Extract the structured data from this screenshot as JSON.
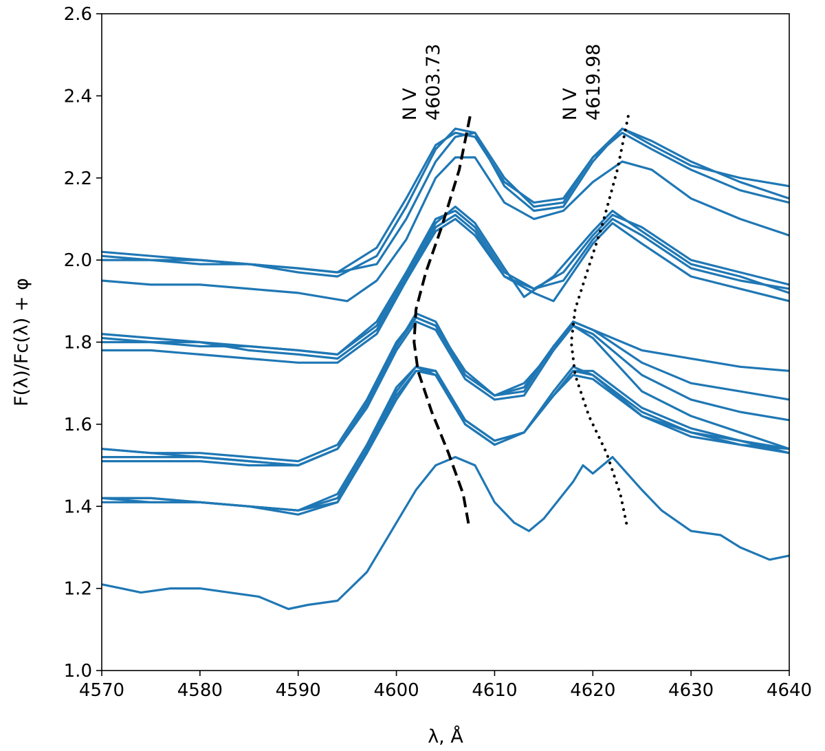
{
  "chart_data": {
    "type": "line",
    "xlabel": "λ, Å",
    "ylabel": "F(λ)/Fc(λ) + φ",
    "xlim": [
      4570,
      4640
    ],
    "ylim": [
      1.0,
      2.6
    ],
    "x_ticks": [
      "4570",
      "4580",
      "4590",
      "4600",
      "4610",
      "4620",
      "4630",
      "4640"
    ],
    "y_ticks": [
      "1.0",
      "1.2",
      "1.4",
      "1.6",
      "1.8",
      "2.0",
      "2.2",
      "2.4",
      "2.6"
    ],
    "grid": false,
    "series_color": "#1f77b4",
    "annotations": [
      {
        "line1": "N V",
        "line2": "4603.73",
        "x": 4602.0,
        "y": 2.34
      },
      {
        "line1": "N V",
        "line2": "4619.98",
        "x": 4618.3,
        "y": 2.34
      }
    ],
    "series": [
      {
        "group": 1,
        "x": [
          4570,
          4575,
          4580,
          4585,
          4590,
          4594,
          4598,
          4601,
          4604,
          4606,
          4608,
          4611,
          4614,
          4617,
          4620,
          4623,
          4626,
          4630,
          4635,
          4640
        ],
        "y": [
          2.02,
          2.01,
          2.0,
          1.99,
          1.98,
          1.97,
          2.03,
          2.15,
          2.28,
          2.31,
          2.3,
          2.19,
          2.14,
          2.15,
          2.25,
          2.32,
          2.28,
          2.23,
          2.2,
          2.18
        ]
      },
      {
        "group": 1,
        "x": [
          4570,
          4575,
          4580,
          4585,
          4590,
          4594,
          4598,
          4601,
          4604,
          4606,
          4608,
          4611,
          4614,
          4617,
          4620,
          4623,
          4626,
          4630,
          4635,
          4640
        ],
        "y": [
          2.01,
          2.0,
          2.0,
          1.99,
          1.97,
          1.96,
          2.01,
          2.13,
          2.27,
          2.32,
          2.31,
          2.18,
          2.12,
          2.13,
          2.24,
          2.32,
          2.29,
          2.24,
          2.19,
          2.15
        ]
      },
      {
        "group": 1,
        "x": [
          4570,
          4575,
          4580,
          4585,
          4590,
          4594,
          4598,
          4601,
          4604,
          4606,
          4608,
          4611,
          4614,
          4617,
          4620,
          4623,
          4626,
          4630,
          4635,
          4640
        ],
        "y": [
          2.0,
          2.0,
          1.99,
          1.99,
          1.98,
          1.97,
          1.99,
          2.1,
          2.24,
          2.3,
          2.31,
          2.2,
          2.13,
          2.14,
          2.25,
          2.31,
          2.27,
          2.22,
          2.17,
          2.14
        ]
      },
      {
        "group": 1,
        "x": [
          4570,
          4575,
          4580,
          4585,
          4590,
          4595,
          4598,
          4601,
          4604,
          4606,
          4608,
          4611,
          4614,
          4617,
          4620,
          4623,
          4626,
          4630,
          4635,
          4640
        ],
        "y": [
          1.95,
          1.94,
          1.94,
          1.93,
          1.92,
          1.9,
          1.95,
          2.05,
          2.2,
          2.25,
          2.25,
          2.14,
          2.1,
          2.12,
          2.19,
          2.24,
          2.22,
          2.15,
          2.1,
          2.06
        ]
      },
      {
        "group": 2,
        "x": [
          4570,
          4575,
          4580,
          4585,
          4590,
          4594,
          4598,
          4601,
          4604,
          4606,
          4608,
          4611,
          4614,
          4617,
          4620,
          4622,
          4625,
          4630,
          4635,
          4640
        ],
        "y": [
          1.82,
          1.81,
          1.8,
          1.79,
          1.78,
          1.77,
          1.85,
          1.97,
          2.1,
          2.12,
          2.08,
          1.97,
          1.93,
          1.97,
          2.06,
          2.11,
          2.08,
          2.0,
          1.97,
          1.94
        ]
      },
      {
        "group": 2,
        "x": [
          4570,
          4575,
          4580,
          4585,
          4590,
          4594,
          4598,
          4601,
          4604,
          4606,
          4608,
          4611,
          4613,
          4616,
          4620,
          4622,
          4625,
          4630,
          4635,
          4640
        ],
        "y": [
          1.81,
          1.8,
          1.79,
          1.79,
          1.78,
          1.77,
          1.84,
          1.96,
          2.09,
          2.13,
          2.09,
          1.98,
          1.91,
          1.96,
          2.07,
          2.12,
          2.07,
          1.99,
          1.96,
          1.92
        ]
      },
      {
        "group": 2,
        "x": [
          4570,
          4575,
          4580,
          4585,
          4590,
          4594,
          4598,
          4601,
          4604,
          4606,
          4608,
          4611,
          4614,
          4617,
          4620,
          4622,
          4625,
          4630,
          4635,
          4640
        ],
        "y": [
          1.8,
          1.8,
          1.8,
          1.78,
          1.77,
          1.76,
          1.83,
          1.95,
          2.08,
          2.11,
          2.07,
          1.96,
          1.93,
          1.95,
          2.05,
          2.1,
          2.06,
          1.98,
          1.95,
          1.93
        ]
      },
      {
        "group": 2,
        "x": [
          4570,
          4575,
          4580,
          4585,
          4590,
          4594,
          4598,
          4601,
          4604,
          4606,
          4608,
          4611,
          4614,
          4616,
          4620,
          4622,
          4625,
          4630,
          4635,
          4640
        ],
        "y": [
          1.78,
          1.78,
          1.77,
          1.76,
          1.75,
          1.75,
          1.82,
          1.95,
          2.07,
          2.1,
          2.06,
          1.96,
          1.92,
          1.9,
          2.04,
          2.09,
          2.04,
          1.96,
          1.93,
          1.9
        ]
      },
      {
        "group": 3,
        "x": [
          4570,
          4575,
          4580,
          4585,
          4590,
          4594,
          4597,
          4600,
          4602,
          4604,
          4607,
          4610,
          4613,
          4616,
          4618,
          4620,
          4625,
          4630,
          4635,
          4640
        ],
        "y": [
          1.54,
          1.53,
          1.53,
          1.52,
          1.51,
          1.55,
          1.66,
          1.8,
          1.86,
          1.84,
          1.73,
          1.67,
          1.69,
          1.79,
          1.85,
          1.83,
          1.78,
          1.76,
          1.74,
          1.73
        ]
      },
      {
        "group": 3,
        "x": [
          4570,
          4575,
          4580,
          4585,
          4590,
          4594,
          4597,
          4600,
          4602,
          4604,
          4607,
          4610,
          4613,
          4616,
          4618,
          4620,
          4625,
          4630,
          4635,
          4640
        ],
        "y": [
          1.54,
          1.53,
          1.52,
          1.51,
          1.5,
          1.54,
          1.65,
          1.79,
          1.87,
          1.85,
          1.72,
          1.67,
          1.7,
          1.78,
          1.85,
          1.83,
          1.75,
          1.7,
          1.68,
          1.66
        ]
      },
      {
        "group": 3,
        "x": [
          4570,
          4575,
          4580,
          4585,
          4590,
          4594,
          4597,
          4600,
          4602,
          4604,
          4607,
          4610,
          4613,
          4616,
          4618,
          4620,
          4625,
          4630,
          4635,
          4640
        ],
        "y": [
          1.52,
          1.52,
          1.52,
          1.51,
          1.5,
          1.54,
          1.65,
          1.79,
          1.86,
          1.84,
          1.72,
          1.67,
          1.68,
          1.79,
          1.84,
          1.82,
          1.72,
          1.66,
          1.63,
          1.61
        ]
      },
      {
        "group": 3,
        "x": [
          4570,
          4575,
          4580,
          4585,
          4590,
          4594,
          4597,
          4600,
          4602,
          4604,
          4607,
          4610,
          4613,
          4616,
          4618,
          4620,
          4625,
          4630,
          4635,
          4640
        ],
        "y": [
          1.51,
          1.51,
          1.51,
          1.5,
          1.5,
          1.54,
          1.64,
          1.78,
          1.85,
          1.83,
          1.71,
          1.66,
          1.67,
          1.78,
          1.84,
          1.81,
          1.68,
          1.62,
          1.58,
          1.54
        ]
      },
      {
        "group": 4,
        "x": [
          4570,
          4575,
          4580,
          4585,
          4590,
          4594,
          4597,
          4600,
          4602,
          4604,
          4607,
          4610,
          4613,
          4616,
          4618,
          4620,
          4625,
          4630,
          4635,
          4640
        ],
        "y": [
          1.42,
          1.42,
          1.41,
          1.4,
          1.39,
          1.43,
          1.55,
          1.69,
          1.74,
          1.73,
          1.61,
          1.56,
          1.58,
          1.67,
          1.73,
          1.73,
          1.64,
          1.59,
          1.56,
          1.53
        ]
      },
      {
        "group": 4,
        "x": [
          4570,
          4575,
          4580,
          4585,
          4590,
          4594,
          4597,
          4600,
          4602,
          4604,
          4607,
          4610,
          4613,
          4616,
          4618,
          4620,
          4625,
          4630,
          4635,
          4640
        ],
        "y": [
          1.42,
          1.42,
          1.41,
          1.4,
          1.39,
          1.42,
          1.54,
          1.68,
          1.74,
          1.72,
          1.6,
          1.55,
          1.58,
          1.68,
          1.74,
          1.72,
          1.63,
          1.58,
          1.55,
          1.53
        ]
      },
      {
        "group": 4,
        "x": [
          4570,
          4575,
          4580,
          4585,
          4590,
          4594,
          4597,
          4600,
          4602,
          4604,
          4607,
          4610,
          4613,
          4616,
          4618,
          4620,
          4625,
          4630,
          4635,
          4640
        ],
        "y": [
          1.41,
          1.41,
          1.41,
          1.4,
          1.38,
          1.41,
          1.53,
          1.67,
          1.73,
          1.72,
          1.6,
          1.55,
          1.58,
          1.67,
          1.73,
          1.72,
          1.62,
          1.57,
          1.55,
          1.54
        ]
      },
      {
        "group": 4,
        "x": [
          4570,
          4575,
          4580,
          4585,
          4590,
          4594,
          4597,
          4600,
          4602,
          4604,
          4607,
          4610,
          4613,
          4616,
          4618,
          4620,
          4625,
          4630,
          4635,
          4640
        ],
        "y": [
          1.42,
          1.41,
          1.41,
          1.4,
          1.39,
          1.41,
          1.53,
          1.66,
          1.73,
          1.73,
          1.61,
          1.56,
          1.58,
          1.67,
          1.72,
          1.71,
          1.62,
          1.58,
          1.56,
          1.54
        ]
      },
      {
        "group": 5,
        "x": [
          4570,
          4572,
          4574,
          4577,
          4580,
          4583,
          4586,
          4589,
          4591,
          4594,
          4597,
          4600,
          4602,
          4604,
          4606,
          4608,
          4610,
          4612,
          4613.5,
          4615,
          4618,
          4619,
          4620,
          4621,
          4622,
          4625,
          4627,
          4630,
          4633,
          4635,
          4638,
          4640
        ],
        "y": [
          1.21,
          1.2,
          1.19,
          1.2,
          1.2,
          1.19,
          1.18,
          1.15,
          1.16,
          1.17,
          1.24,
          1.36,
          1.44,
          1.5,
          1.52,
          1.5,
          1.41,
          1.36,
          1.34,
          1.37,
          1.46,
          1.5,
          1.48,
          1.5,
          1.52,
          1.44,
          1.39,
          1.34,
          1.33,
          1.3,
          1.27,
          1.28
        ]
      }
    ],
    "trajectories": [
      {
        "style": "dashed",
        "label_ref": 0,
        "points": [
          [
            4607.5,
            2.35
          ],
          [
            4606.4,
            2.22
          ],
          [
            4604.6,
            2.08
          ],
          [
            4603.0,
            1.97
          ],
          [
            4602.0,
            1.88
          ],
          [
            4601.8,
            1.8
          ],
          [
            4602.2,
            1.73
          ],
          [
            4603.6,
            1.63
          ],
          [
            4605.3,
            1.53
          ],
          [
            4606.8,
            1.43
          ],
          [
            4607.4,
            1.35
          ]
        ]
      },
      {
        "style": "dotted",
        "label_ref": 1,
        "points": [
          [
            4623.6,
            2.35
          ],
          [
            4622.5,
            2.22
          ],
          [
            4620.9,
            2.08
          ],
          [
            4619.4,
            1.97
          ],
          [
            4618.2,
            1.88
          ],
          [
            4617.8,
            1.8
          ],
          [
            4618.2,
            1.72
          ],
          [
            4619.6,
            1.62
          ],
          [
            4621.4,
            1.53
          ],
          [
            4622.8,
            1.43
          ],
          [
            4623.5,
            1.35
          ]
        ]
      }
    ]
  }
}
